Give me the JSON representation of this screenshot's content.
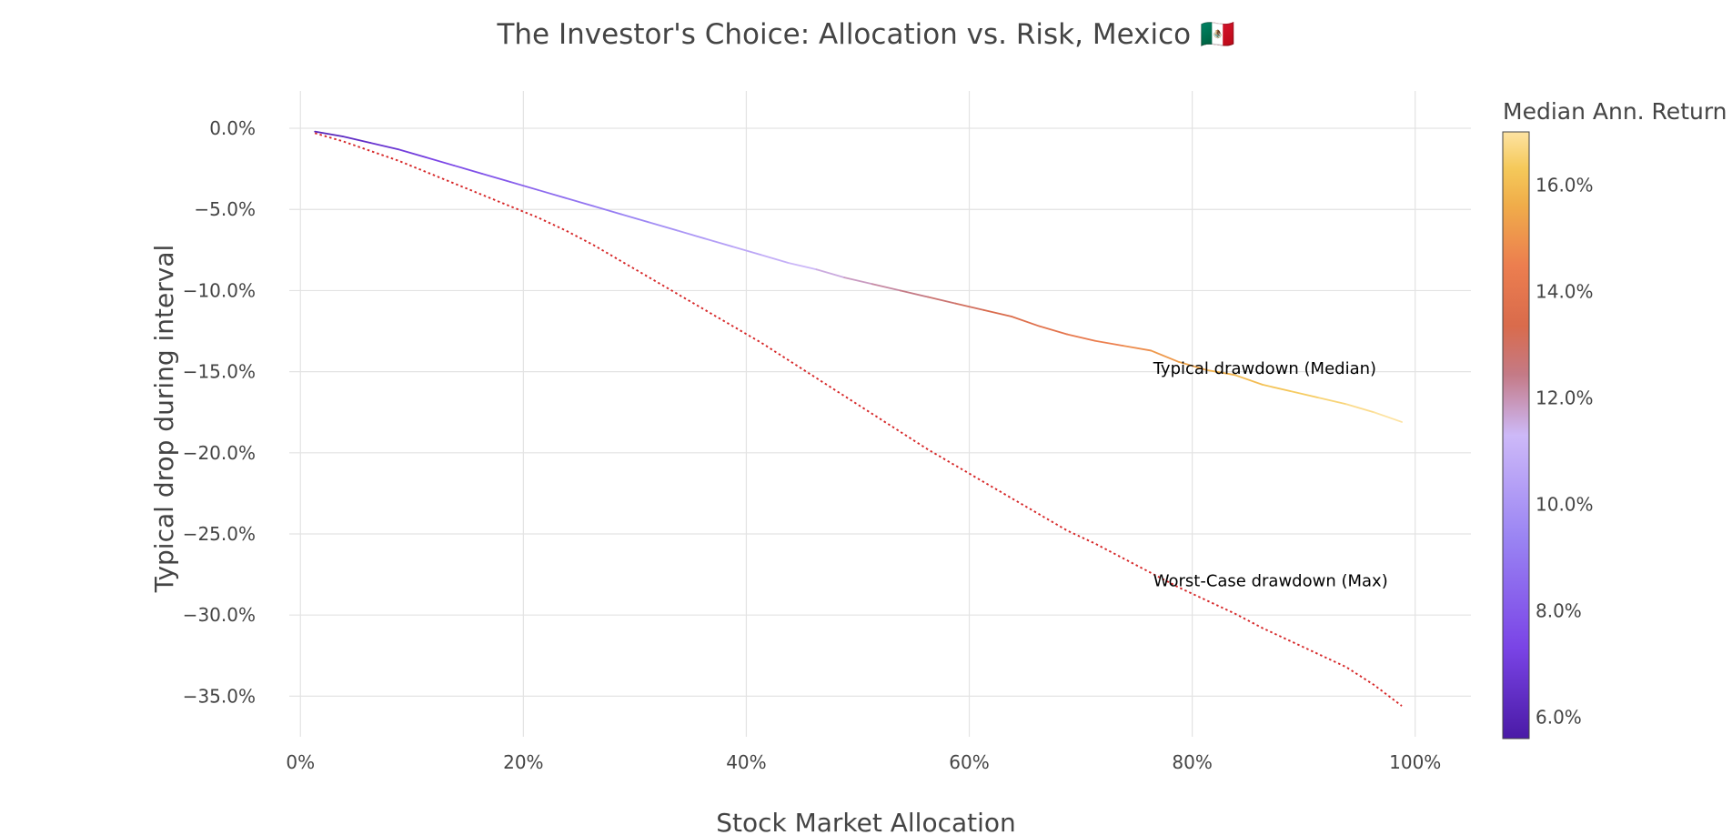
{
  "chart_data": {
    "type": "line",
    "title": "The Investor's Choice: Allocation vs. Risk, Mexico 🇲🇽",
    "xlabel": "Stock Market Allocation",
    "ylabel": "Typical drop during interval",
    "xlim": [
      -0.01,
      1.05
    ],
    "ylim": [
      -37.5,
      2.3
    ],
    "x_ticks": [
      0,
      0.2,
      0.4,
      0.6,
      0.8,
      1.0
    ],
    "x_tick_labels": [
      "0%",
      "20%",
      "40%",
      "60%",
      "80%",
      "100%"
    ],
    "y_ticks": [
      0,
      -5,
      -10,
      -15,
      -20,
      -25,
      -30,
      -35
    ],
    "y_tick_labels": [
      "0.0%",
      "−5.0%",
      "−10.0%",
      "−15.0%",
      "−20.0%",
      "−25.0%",
      "−30.0%",
      "−35.0%"
    ],
    "series": [
      {
        "name": "Typical drawdown (Median)",
        "style": "solid, colored by median annual return",
        "x": [
          0.013,
          0.038,
          0.063,
          0.088,
          0.113,
          0.138,
          0.163,
          0.188,
          0.213,
          0.238,
          0.263,
          0.288,
          0.313,
          0.338,
          0.363,
          0.388,
          0.413,
          0.438,
          0.463,
          0.488,
          0.513,
          0.538,
          0.563,
          0.588,
          0.613,
          0.638,
          0.663,
          0.688,
          0.713,
          0.738,
          0.763,
          0.788,
          0.813,
          0.838,
          0.863,
          0.888,
          0.913,
          0.938,
          0.963,
          0.988
        ],
        "y": [
          -0.2,
          -0.5,
          -0.9,
          -1.3,
          -1.8,
          -2.3,
          -2.8,
          -3.3,
          -3.8,
          -4.3,
          -4.8,
          -5.3,
          -5.8,
          -6.3,
          -6.8,
          -7.3,
          -7.8,
          -8.3,
          -8.7,
          -9.2,
          -9.6,
          -10.0,
          -10.4,
          -10.8,
          -11.2,
          -11.6,
          -12.2,
          -12.7,
          -13.1,
          -13.4,
          -13.7,
          -14.4,
          -14.9,
          -15.2,
          -15.8,
          -16.2,
          -16.6,
          -17.0,
          -17.5,
          -18.1
        ],
        "median_return": [
          6.0,
          6.3,
          6.6,
          6.9,
          7.2,
          7.5,
          7.8,
          8.1,
          8.4,
          8.7,
          9.0,
          9.3,
          9.6,
          9.9,
          10.2,
          10.5,
          10.8,
          11.1,
          11.4,
          11.7,
          12.0,
          12.3,
          12.6,
          12.9,
          13.2,
          13.5,
          13.8,
          14.1,
          14.4,
          14.7,
          15.0,
          15.3,
          15.6,
          15.9,
          16.1,
          16.3,
          16.5,
          16.7,
          16.9,
          17.1
        ]
      },
      {
        "name": "Worst-Case drawdown (Max)",
        "style": "dotted red",
        "color": "#d62728",
        "x": [
          0.013,
          0.038,
          0.063,
          0.088,
          0.113,
          0.138,
          0.163,
          0.188,
          0.213,
          0.238,
          0.263,
          0.288,
          0.313,
          0.338,
          0.363,
          0.388,
          0.413,
          0.438,
          0.463,
          0.488,
          0.513,
          0.538,
          0.563,
          0.588,
          0.613,
          0.638,
          0.663,
          0.688,
          0.713,
          0.738,
          0.763,
          0.788,
          0.813,
          0.838,
          0.863,
          0.888,
          0.913,
          0.938,
          0.963,
          0.988
        ],
        "y": [
          -0.3,
          -0.8,
          -1.4,
          -2.0,
          -2.7,
          -3.4,
          -4.1,
          -4.8,
          -5.5,
          -6.3,
          -7.2,
          -8.2,
          -9.2,
          -10.2,
          -11.2,
          -12.2,
          -13.2,
          -14.3,
          -15.4,
          -16.5,
          -17.6,
          -18.7,
          -19.8,
          -20.8,
          -21.8,
          -22.8,
          -23.8,
          -24.8,
          -25.6,
          -26.5,
          -27.4,
          -28.3,
          -29.1,
          -29.9,
          -30.8,
          -31.6,
          -32.4,
          -33.2,
          -34.3,
          -35.6
        ]
      }
    ],
    "annotations": [
      {
        "text": "Typical drawdown (Median)",
        "x": 0.765,
        "y": -14.8
      },
      {
        "text": "Worst-Case drawdown (Max)",
        "x": 0.765,
        "y": -27.9
      }
    ],
    "colorbar": {
      "title": "Median Ann. Return",
      "range": [
        5.6,
        17.0
      ],
      "ticks": [
        6,
        8,
        10,
        12,
        14,
        16
      ],
      "tick_labels": [
        "6.0%",
        "8.0%",
        "10.0%",
        "12.0%",
        "14.0%",
        "16.0%"
      ],
      "colorscale": [
        [
          0.0,
          "#4a1aa6"
        ],
        [
          0.15,
          "#7a44e6"
        ],
        [
          0.33,
          "#9a84f3"
        ],
        [
          0.5,
          "#cdb9f8"
        ],
        [
          0.6,
          "#c47a86"
        ],
        [
          0.68,
          "#d96b4c"
        ],
        [
          0.78,
          "#ec7e4f"
        ],
        [
          0.88,
          "#f0ad4a"
        ],
        [
          0.94,
          "#f5c95a"
        ],
        [
          1.0,
          "#fde3a2"
        ]
      ]
    },
    "grid": true
  }
}
